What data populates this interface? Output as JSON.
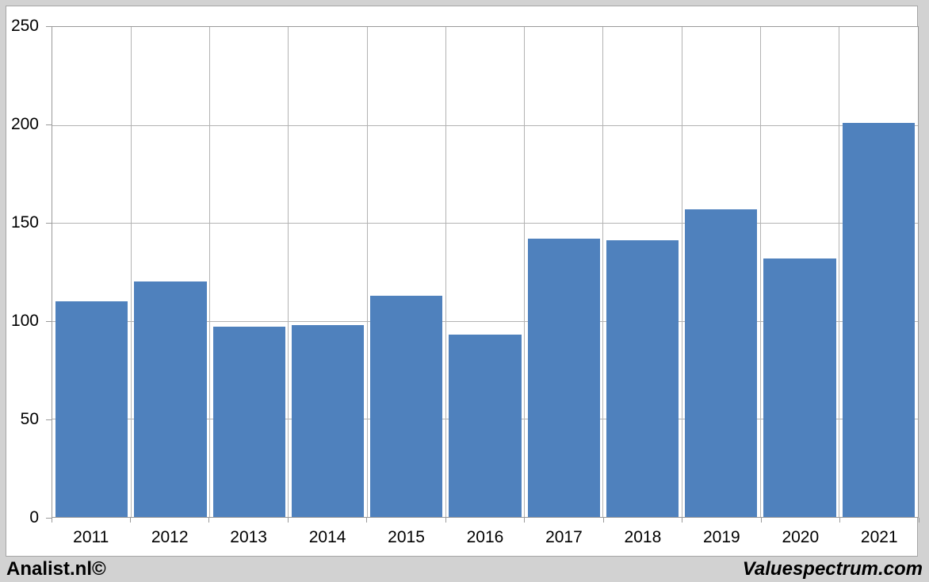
{
  "chart_data": {
    "type": "bar",
    "title": "",
    "xlabel": "",
    "ylabel": "",
    "categories": [
      "2011",
      "2012",
      "2013",
      "2014",
      "2015",
      "2016",
      "2017",
      "2018",
      "2019",
      "2020",
      "2021"
    ],
    "values": [
      110,
      120,
      97,
      98,
      113,
      93,
      142,
      141,
      157,
      132,
      201
    ],
    "ylim": [
      0,
      250
    ],
    "yticks": [
      0,
      50,
      100,
      150,
      200,
      250
    ],
    "grid": true,
    "legend": "none",
    "bar_color": "#4f81bd"
  },
  "colors": {
    "bar": "#4f81bd",
    "background": "#d2d2d2",
    "plot_background": "#ffffff",
    "gridline": "#b3b3b3",
    "axis": "#9a9a9a"
  },
  "footer": {
    "left_text": "Analist.nl©",
    "right_text": "Valuespectrum.com"
  }
}
